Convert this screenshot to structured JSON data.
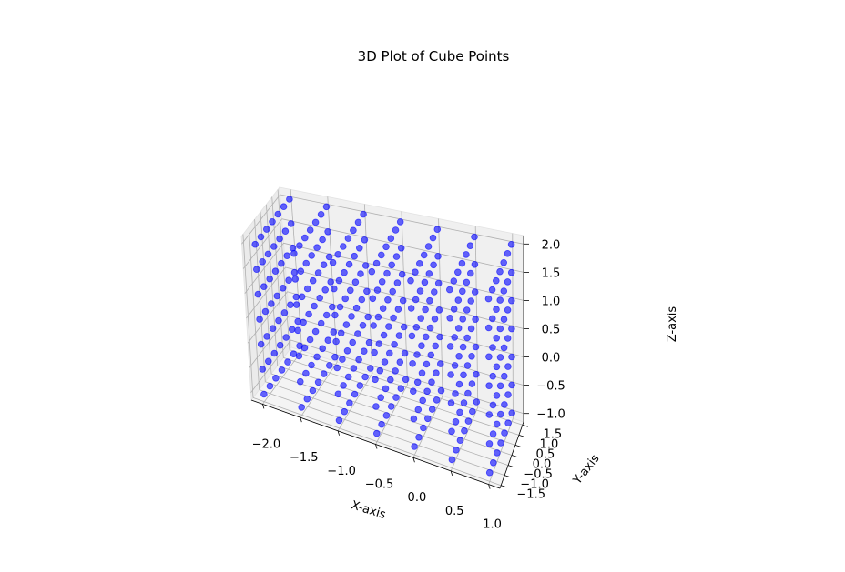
{
  "chart_data": {
    "type": "scatter",
    "projection": "3d",
    "title": "3D Plot of Cube Points",
    "xlabel": "X-axis",
    "ylabel": "Y-axis",
    "zlabel": "Z-axis",
    "xlim": [
      -2.15,
      1.15
    ],
    "ylim": [
      -1.65,
      1.65
    ],
    "zlim": [
      -1.15,
      2.15
    ],
    "x_ticks": [
      "−2.0",
      "−1.5",
      "−1.0",
      "−0.5",
      "0.0",
      "0.5",
      "1.0"
    ],
    "x_tick_values": [
      -2.0,
      -1.5,
      -1.0,
      -0.5,
      0.0,
      0.5,
      1.0
    ],
    "y_ticks": [
      "−1.5",
      "−1.0",
      "−0.5",
      "0.0",
      "0.5",
      "1.0",
      "1.5"
    ],
    "y_tick_values": [
      -1.5,
      -1.0,
      -0.5,
      0.0,
      0.5,
      1.0,
      1.5
    ],
    "z_ticks": [
      "−1.0",
      "−0.5",
      "0.0",
      "0.5",
      "1.0",
      "1.5",
      "2.0"
    ],
    "z_tick_values": [
      -1.0,
      -0.5,
      0.0,
      0.5,
      1.0,
      1.5,
      2.0
    ],
    "grid": true,
    "marker_color": "#0000ff",
    "marker_alpha": 0.6,
    "series": [
      {
        "x_values": [
          -2.0,
          -1.5,
          -1.0,
          -0.5,
          0.0,
          0.5,
          1.0
        ],
        "y_values": [
          -1.5,
          -1.0,
          -0.5,
          0.0,
          0.5,
          1.0,
          1.5
        ],
        "z_values": [
          -1.0,
          -0.5,
          0.0,
          0.5,
          1.0,
          1.5,
          2.0
        ],
        "point_set": "full grid: every combination of x_values, y_values, z_values (343 points)"
      }
    ]
  }
}
